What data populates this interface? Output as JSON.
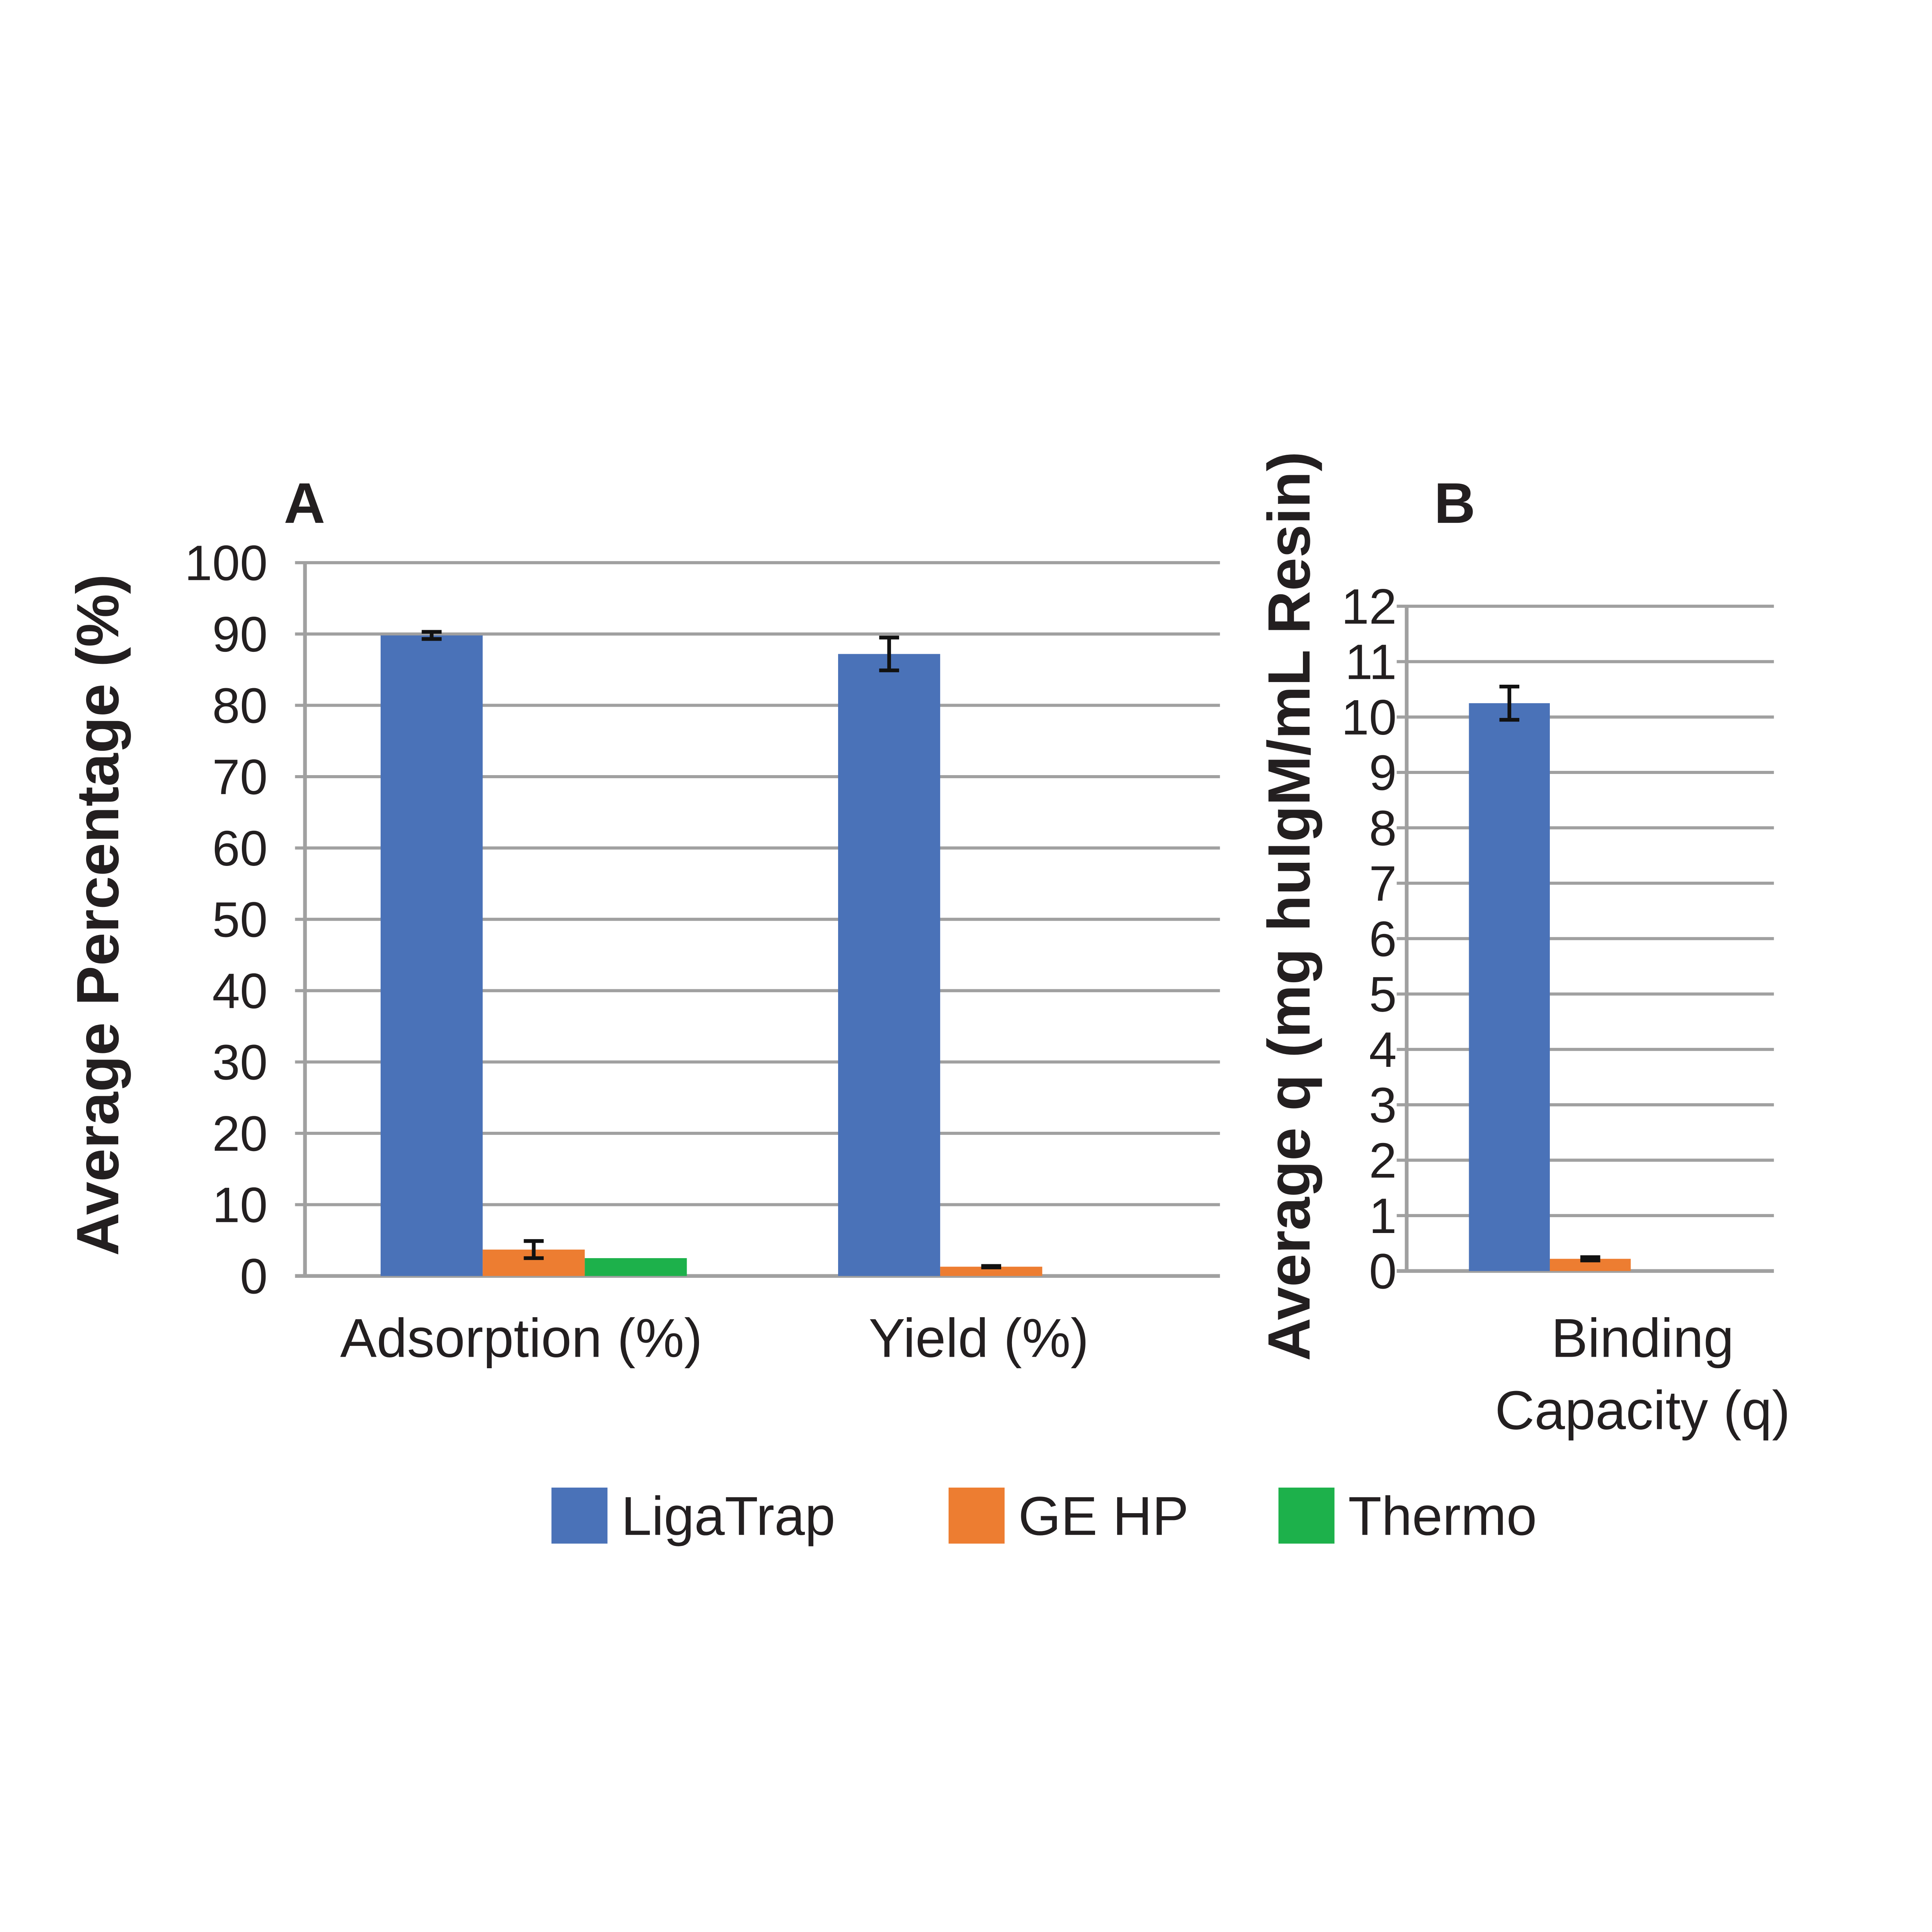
{
  "chart_data": [
    {
      "type": "bar",
      "panel_label": "A",
      "categories": [
        "Adsorption (%)",
        "Yield (%)"
      ],
      "ylabel": "Average Percentage (%)",
      "ylim": [
        0,
        100
      ],
      "yticks": [
        0,
        10,
        20,
        30,
        40,
        50,
        60,
        70,
        80,
        90,
        100
      ],
      "grid": true,
      "series": [
        {
          "name": "LigaTrap",
          "color": "#4a72b8",
          "values": [
            89.8,
            87.2
          ],
          "errors": [
            0.5,
            2.3
          ]
        },
        {
          "name": "GE HP",
          "color": "#ed7d31",
          "values": [
            3.7,
            1.3
          ],
          "errors": [
            1.2,
            0.1
          ]
        },
        {
          "name": "Thermo",
          "color": "#1db14b",
          "values": [
            2.5,
            0
          ],
          "errors": [
            0,
            0
          ]
        }
      ]
    },
    {
      "type": "bar",
      "panel_label": "B",
      "categories": [
        [
          "Binding",
          "Capacity (q)"
        ]
      ],
      "ylabel": "Average q (mg huIgM/mL Resin)",
      "ylim": [
        0,
        12
      ],
      "yticks": [
        0,
        1,
        2,
        3,
        4,
        5,
        6,
        7,
        8,
        9,
        10,
        11,
        12
      ],
      "grid": true,
      "series": [
        {
          "name": "LigaTrap",
          "color": "#4a72b8",
          "values": [
            10.25
          ],
          "errors": [
            0.3
          ]
        },
        {
          "name": "GE HP",
          "color": "#ed7d31",
          "values": [
            0.22
          ],
          "errors": [
            0.03
          ]
        },
        {
          "name": "Thermo",
          "color": "#1db14b",
          "values": [
            0
          ],
          "errors": [
            0
          ]
        }
      ]
    }
  ],
  "legend": {
    "placement": "bottom",
    "items": [
      {
        "label": "LigaTrap",
        "color": "#4a72b8"
      },
      {
        "label": "GE HP",
        "color": "#ed7d31"
      },
      {
        "label": "Thermo",
        "color": "#1db14b"
      }
    ]
  }
}
